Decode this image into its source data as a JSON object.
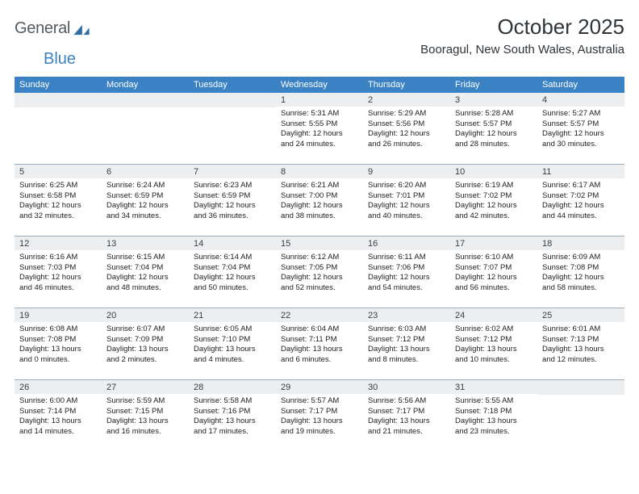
{
  "logo": {
    "text1": "General",
    "text2": "Blue"
  },
  "title": "October 2025",
  "location": "Booragul, New South Wales, Australia",
  "colors": {
    "header_bg": "#3b82c4",
    "header_fg": "#ffffff",
    "daynum_bg": "#eceef0",
    "rule": "#9aaebf",
    "logo_fill": "#2f6fa8"
  },
  "days_of_week": [
    "Sunday",
    "Monday",
    "Tuesday",
    "Wednesday",
    "Thursday",
    "Friday",
    "Saturday"
  ],
  "weeks": [
    [
      {
        "n": "",
        "l1": "",
        "l2": "",
        "l3": "",
        "l4": ""
      },
      {
        "n": "",
        "l1": "",
        "l2": "",
        "l3": "",
        "l4": ""
      },
      {
        "n": "",
        "l1": "",
        "l2": "",
        "l3": "",
        "l4": ""
      },
      {
        "n": "1",
        "l1": "Sunrise: 5:31 AM",
        "l2": "Sunset: 5:55 PM",
        "l3": "Daylight: 12 hours",
        "l4": "and 24 minutes."
      },
      {
        "n": "2",
        "l1": "Sunrise: 5:29 AM",
        "l2": "Sunset: 5:56 PM",
        "l3": "Daylight: 12 hours",
        "l4": "and 26 minutes."
      },
      {
        "n": "3",
        "l1": "Sunrise: 5:28 AM",
        "l2": "Sunset: 5:57 PM",
        "l3": "Daylight: 12 hours",
        "l4": "and 28 minutes."
      },
      {
        "n": "4",
        "l1": "Sunrise: 5:27 AM",
        "l2": "Sunset: 5:57 PM",
        "l3": "Daylight: 12 hours",
        "l4": "and 30 minutes."
      }
    ],
    [
      {
        "n": "5",
        "l1": "Sunrise: 6:25 AM",
        "l2": "Sunset: 6:58 PM",
        "l3": "Daylight: 12 hours",
        "l4": "and 32 minutes."
      },
      {
        "n": "6",
        "l1": "Sunrise: 6:24 AM",
        "l2": "Sunset: 6:59 PM",
        "l3": "Daylight: 12 hours",
        "l4": "and 34 minutes."
      },
      {
        "n": "7",
        "l1": "Sunrise: 6:23 AM",
        "l2": "Sunset: 6:59 PM",
        "l3": "Daylight: 12 hours",
        "l4": "and 36 minutes."
      },
      {
        "n": "8",
        "l1": "Sunrise: 6:21 AM",
        "l2": "Sunset: 7:00 PM",
        "l3": "Daylight: 12 hours",
        "l4": "and 38 minutes."
      },
      {
        "n": "9",
        "l1": "Sunrise: 6:20 AM",
        "l2": "Sunset: 7:01 PM",
        "l3": "Daylight: 12 hours",
        "l4": "and 40 minutes."
      },
      {
        "n": "10",
        "l1": "Sunrise: 6:19 AM",
        "l2": "Sunset: 7:02 PM",
        "l3": "Daylight: 12 hours",
        "l4": "and 42 minutes."
      },
      {
        "n": "11",
        "l1": "Sunrise: 6:17 AM",
        "l2": "Sunset: 7:02 PM",
        "l3": "Daylight: 12 hours",
        "l4": "and 44 minutes."
      }
    ],
    [
      {
        "n": "12",
        "l1": "Sunrise: 6:16 AM",
        "l2": "Sunset: 7:03 PM",
        "l3": "Daylight: 12 hours",
        "l4": "and 46 minutes."
      },
      {
        "n": "13",
        "l1": "Sunrise: 6:15 AM",
        "l2": "Sunset: 7:04 PM",
        "l3": "Daylight: 12 hours",
        "l4": "and 48 minutes."
      },
      {
        "n": "14",
        "l1": "Sunrise: 6:14 AM",
        "l2": "Sunset: 7:04 PM",
        "l3": "Daylight: 12 hours",
        "l4": "and 50 minutes."
      },
      {
        "n": "15",
        "l1": "Sunrise: 6:12 AM",
        "l2": "Sunset: 7:05 PM",
        "l3": "Daylight: 12 hours",
        "l4": "and 52 minutes."
      },
      {
        "n": "16",
        "l1": "Sunrise: 6:11 AM",
        "l2": "Sunset: 7:06 PM",
        "l3": "Daylight: 12 hours",
        "l4": "and 54 minutes."
      },
      {
        "n": "17",
        "l1": "Sunrise: 6:10 AM",
        "l2": "Sunset: 7:07 PM",
        "l3": "Daylight: 12 hours",
        "l4": "and 56 minutes."
      },
      {
        "n": "18",
        "l1": "Sunrise: 6:09 AM",
        "l2": "Sunset: 7:08 PM",
        "l3": "Daylight: 12 hours",
        "l4": "and 58 minutes."
      }
    ],
    [
      {
        "n": "19",
        "l1": "Sunrise: 6:08 AM",
        "l2": "Sunset: 7:08 PM",
        "l3": "Daylight: 13 hours",
        "l4": "and 0 minutes."
      },
      {
        "n": "20",
        "l1": "Sunrise: 6:07 AM",
        "l2": "Sunset: 7:09 PM",
        "l3": "Daylight: 13 hours",
        "l4": "and 2 minutes."
      },
      {
        "n": "21",
        "l1": "Sunrise: 6:05 AM",
        "l2": "Sunset: 7:10 PM",
        "l3": "Daylight: 13 hours",
        "l4": "and 4 minutes."
      },
      {
        "n": "22",
        "l1": "Sunrise: 6:04 AM",
        "l2": "Sunset: 7:11 PM",
        "l3": "Daylight: 13 hours",
        "l4": "and 6 minutes."
      },
      {
        "n": "23",
        "l1": "Sunrise: 6:03 AM",
        "l2": "Sunset: 7:12 PM",
        "l3": "Daylight: 13 hours",
        "l4": "and 8 minutes."
      },
      {
        "n": "24",
        "l1": "Sunrise: 6:02 AM",
        "l2": "Sunset: 7:12 PM",
        "l3": "Daylight: 13 hours",
        "l4": "and 10 minutes."
      },
      {
        "n": "25",
        "l1": "Sunrise: 6:01 AM",
        "l2": "Sunset: 7:13 PM",
        "l3": "Daylight: 13 hours",
        "l4": "and 12 minutes."
      }
    ],
    [
      {
        "n": "26",
        "l1": "Sunrise: 6:00 AM",
        "l2": "Sunset: 7:14 PM",
        "l3": "Daylight: 13 hours",
        "l4": "and 14 minutes."
      },
      {
        "n": "27",
        "l1": "Sunrise: 5:59 AM",
        "l2": "Sunset: 7:15 PM",
        "l3": "Daylight: 13 hours",
        "l4": "and 16 minutes."
      },
      {
        "n": "28",
        "l1": "Sunrise: 5:58 AM",
        "l2": "Sunset: 7:16 PM",
        "l3": "Daylight: 13 hours",
        "l4": "and 17 minutes."
      },
      {
        "n": "29",
        "l1": "Sunrise: 5:57 AM",
        "l2": "Sunset: 7:17 PM",
        "l3": "Daylight: 13 hours",
        "l4": "and 19 minutes."
      },
      {
        "n": "30",
        "l1": "Sunrise: 5:56 AM",
        "l2": "Sunset: 7:17 PM",
        "l3": "Daylight: 13 hours",
        "l4": "and 21 minutes."
      },
      {
        "n": "31",
        "l1": "Sunrise: 5:55 AM",
        "l2": "Sunset: 7:18 PM",
        "l3": "Daylight: 13 hours",
        "l4": "and 23 minutes."
      },
      {
        "n": "",
        "l1": "",
        "l2": "",
        "l3": "",
        "l4": ""
      }
    ]
  ]
}
